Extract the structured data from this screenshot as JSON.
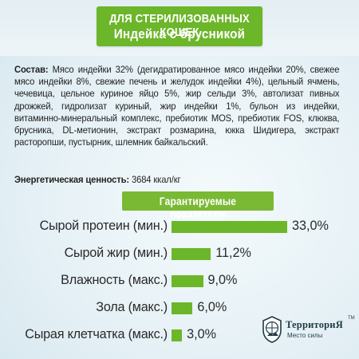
{
  "title": {
    "line1": "ДЛЯ СТЕРИЛИЗОВАННЫХ КОШЕК",
    "line2": "Индейка с брусникой"
  },
  "composition": {
    "label": "Состав:",
    "text": " Мясо индейки 32% (дегидратированное мясо индейки 20%, свежее мясо индейки 8%, свежие печень и желудок индейки 4%), цельный ячмень, чечевица, цельное куриное яйцо 5%, жир сельди 3%, автолизат пивных дрожжей, гидролизат куриный, жир индейки 1%, бульон из индейки, витаминно-минеральный комплекс, пребиотик MOS, пребиотик FOS, клюква, брусника, DL-метионин, экстракт розмарина, юкка Шидигера, экстракт расторопши, пустырник, шлемник байкальский."
  },
  "energy": {
    "label": "Энергетическая ценность:",
    "value": " 3684 ккал/кг"
  },
  "chart_data": {
    "type": "bar",
    "title": "Гарантируемые показатели",
    "categories": [
      "Сырой протеин (мин.)",
      "Сырой жир (мин.)",
      "Влажность (макс.)",
      "Зола (макс.)",
      "Сырая клетчатка (макс.)"
    ],
    "values": [
      33.0,
      11.2,
      9.0,
      6.0,
      3.0
    ],
    "value_labels": [
      "33,0%",
      "11,2%",
      "9,0%",
      "6,0%",
      "3,0%"
    ],
    "unit": "%",
    "bar_color": "#6cb62a",
    "grid": false
  },
  "logo": {
    "name": "ТерриториЯ",
    "tm": "TM",
    "subtitle": "Место силы"
  }
}
